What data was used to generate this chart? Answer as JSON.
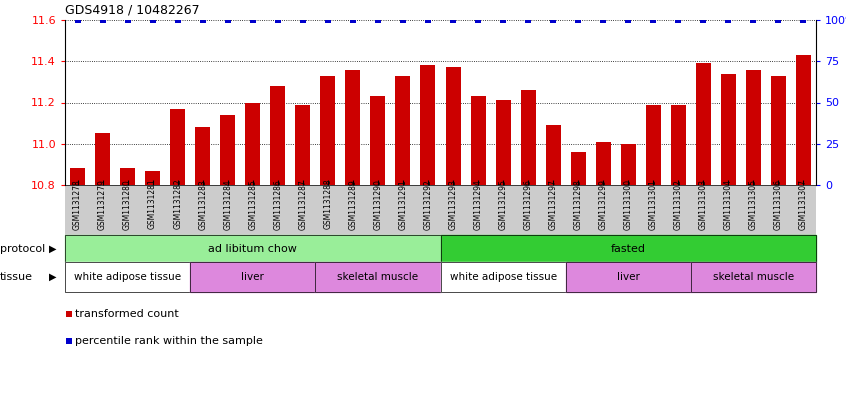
{
  "title": "GDS4918 / 10482267",
  "samples": [
    "GSM1131278",
    "GSM1131279",
    "GSM1131280",
    "GSM1131281",
    "GSM1131282",
    "GSM1131283",
    "GSM1131284",
    "GSM1131285",
    "GSM1131286",
    "GSM1131287",
    "GSM1131288",
    "GSM1131289",
    "GSM1131290",
    "GSM1131291",
    "GSM1131292",
    "GSM1131293",
    "GSM1131294",
    "GSM1131295",
    "GSM1131296",
    "GSM1131297",
    "GSM1131298",
    "GSM1131299",
    "GSM1131300",
    "GSM1131301",
    "GSM1131302",
    "GSM1131303",
    "GSM1131304",
    "GSM1131305",
    "GSM1131306",
    "GSM1131307"
  ],
  "bar_values": [
    10.88,
    11.05,
    10.88,
    10.87,
    11.17,
    11.08,
    11.14,
    11.2,
    11.28,
    11.19,
    11.33,
    11.36,
    11.23,
    11.33,
    11.38,
    11.37,
    11.23,
    11.21,
    11.26,
    11.09,
    10.96,
    11.01,
    11.0,
    11.19,
    11.19,
    11.39,
    11.34,
    11.36,
    11.33,
    11.43
  ],
  "percentile_values": [
    100,
    100,
    100,
    100,
    100,
    100,
    100,
    100,
    100,
    100,
    100,
    100,
    100,
    100,
    100,
    100,
    100,
    100,
    100,
    100,
    100,
    100,
    100,
    100,
    100,
    100,
    100,
    100,
    100,
    100
  ],
  "bar_color": "#cc0000",
  "percentile_color": "#0000cc",
  "ylim_left": [
    10.8,
    11.6
  ],
  "ylim_right": [
    0,
    100
  ],
  "yticks_left": [
    10.8,
    11.0,
    11.2,
    11.4,
    11.6
  ],
  "yticks_right": [
    0,
    25,
    50,
    75,
    100
  ],
  "ytick_labels_right": [
    "0",
    "25",
    "50",
    "75",
    "100%"
  ],
  "protocol_groups": [
    {
      "text": "ad libitum chow",
      "start": 0,
      "end": 15,
      "color": "#99ee99"
    },
    {
      "text": "fasted",
      "start": 15,
      "end": 30,
      "color": "#33cc33"
    }
  ],
  "tissue_groups": [
    {
      "text": "white adipose tissue",
      "start": 0,
      "end": 5,
      "color": "#ffffff"
    },
    {
      "text": "liver",
      "start": 5,
      "end": 10,
      "color": "#dd88dd"
    },
    {
      "text": "skeletal muscle",
      "start": 10,
      "end": 15,
      "color": "#dd88dd"
    },
    {
      "text": "white adipose tissue",
      "start": 15,
      "end": 20,
      "color": "#ffffff"
    },
    {
      "text": "liver",
      "start": 20,
      "end": 25,
      "color": "#dd88dd"
    },
    {
      "text": "skeletal muscle",
      "start": 25,
      "end": 30,
      "color": "#dd88dd"
    }
  ],
  "legend_items": [
    {
      "label": "transformed count",
      "color": "#cc0000"
    },
    {
      "label": "percentile rank within the sample",
      "color": "#0000cc"
    }
  ],
  "xticklabel_bg": "#cccccc",
  "title_fontsize": 9,
  "bar_width": 0.6
}
